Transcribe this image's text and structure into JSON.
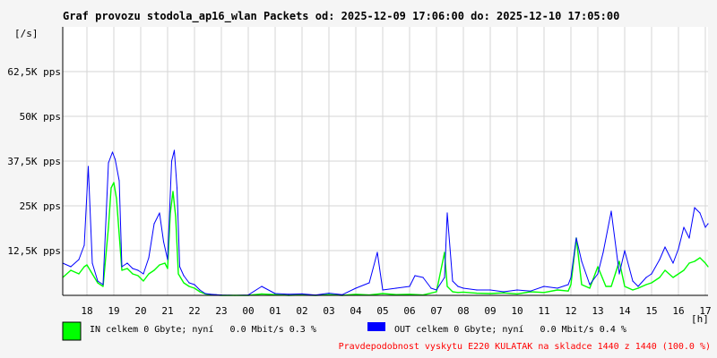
{
  "colors": {
    "background": "#f5f5f5",
    "plot_background": "#ffffff",
    "grid": "#d6d6d6",
    "in_series": "#00ff00",
    "out_series": "#0000ff",
    "note": "#ff0000"
  },
  "chart_data": {
    "type": "line",
    "title": "Graf provozu stodola_ap16_wlan Packets od: 2025-12-09 17:06:00 do: 2025-12-10 17:05:00",
    "ylabel": "[/s]",
    "xlabel": "[h]",
    "ylim": [
      0,
      75000
    ],
    "xlim": [
      17.1,
      41.1
    ],
    "grid": true,
    "y_ticks": [
      {
        "value": 12500,
        "label": "12,5K pps"
      },
      {
        "value": 25000,
        "label": "25K pps"
      },
      {
        "value": 37500,
        "label": "37,5K pps"
      },
      {
        "value": 50000,
        "label": "50K pps"
      },
      {
        "value": 62500,
        "label": "62,5K pps"
      }
    ],
    "x_ticks": [
      {
        "value": 18,
        "label": "18"
      },
      {
        "value": 19,
        "label": "19"
      },
      {
        "value": 20,
        "label": "20"
      },
      {
        "value": 21,
        "label": "21"
      },
      {
        "value": 22,
        "label": "22"
      },
      {
        "value": 23,
        "label": "23"
      },
      {
        "value": 24,
        "label": "00"
      },
      {
        "value": 25,
        "label": "01"
      },
      {
        "value": 26,
        "label": "02"
      },
      {
        "value": 27,
        "label": "03"
      },
      {
        "value": 28,
        "label": "04"
      },
      {
        "value": 29,
        "label": "05"
      },
      {
        "value": 30,
        "label": "06"
      },
      {
        "value": 31,
        "label": "07"
      },
      {
        "value": 32,
        "label": "08"
      },
      {
        "value": 33,
        "label": "09"
      },
      {
        "value": 34,
        "label": "10"
      },
      {
        "value": 35,
        "label": "11"
      },
      {
        "value": 36,
        "label": "12"
      },
      {
        "value": 37,
        "label": "13"
      },
      {
        "value": 38,
        "label": "14"
      },
      {
        "value": 39,
        "label": "15"
      },
      {
        "value": 40,
        "label": "16"
      },
      {
        "value": 41,
        "label": "17"
      }
    ],
    "series": [
      {
        "key": "in",
        "legend": "IN celkem 0 Gbyte; nyní   0.0 Mbit/s 0.3 %",
        "x": [
          17.1,
          17.4,
          17.7,
          17.9,
          18.0,
          18.2,
          18.4,
          18.6,
          18.8,
          18.9,
          19.0,
          19.1,
          19.3,
          19.5,
          19.7,
          19.9,
          20.1,
          20.3,
          20.5,
          20.7,
          20.9,
          21.0,
          21.1,
          21.2,
          21.3,
          21.4,
          21.6,
          21.8,
          22.0,
          22.2,
          22.4,
          22.6,
          22.8,
          23.0,
          23.5,
          24.0,
          24.5,
          25.0,
          25.5,
          26.0,
          26.5,
          27.0,
          27.5,
          28.0,
          28.5,
          29.0,
          29.5,
          30.0,
          30.5,
          31.0,
          31.3,
          31.4,
          31.6,
          31.8,
          32.0,
          32.5,
          33.0,
          33.5,
          34.0,
          34.5,
          35.0,
          35.5,
          35.9,
          36.0,
          36.2,
          36.4,
          36.7,
          37.0,
          37.3,
          37.5,
          37.8,
          38.0,
          38.3,
          38.5,
          38.8,
          39.0,
          39.3,
          39.5,
          39.8,
          40.0,
          40.2,
          40.4,
          40.6,
          40.8,
          41.0,
          41.1
        ],
        "values": [
          5000,
          7000,
          6000,
          8000,
          8500,
          6000,
          3500,
          2500,
          19000,
          30000,
          31500,
          27000,
          7000,
          7500,
          6000,
          5500,
          4000,
          6000,
          7000,
          8500,
          9000,
          7500,
          23000,
          29000,
          22000,
          6000,
          3500,
          2500,
          2000,
          1000,
          400,
          200,
          100,
          0,
          0,
          0,
          400,
          200,
          0,
          100,
          0,
          200,
          0,
          300,
          100,
          500,
          200,
          300,
          100,
          1000,
          12000,
          2500,
          1000,
          800,
          900,
          600,
          500,
          700,
          400,
          1000,
          800,
          1500,
          1200,
          3000,
          16000,
          3000,
          2000,
          8000,
          2500,
          2500,
          9500,
          2500,
          1500,
          2000,
          3000,
          3500,
          5000,
          7000,
          5000,
          6000,
          7000,
          9000,
          9500,
          10500,
          9000,
          8000
        ]
      },
      {
        "key": "out",
        "legend": "OUT celkem 0 Gbyte; nyní   0.0 Mbit/s 0.4 %",
        "x": [
          17.1,
          17.4,
          17.7,
          17.9,
          18.05,
          18.2,
          18.4,
          18.6,
          18.8,
          18.95,
          19.05,
          19.2,
          19.3,
          19.5,
          19.7,
          19.9,
          20.1,
          20.3,
          20.5,
          20.7,
          20.85,
          21.0,
          21.15,
          21.25,
          21.35,
          21.45,
          21.6,
          21.8,
          22.0,
          22.2,
          22.4,
          22.6,
          22.8,
          23.0,
          23.5,
          24.0,
          24.5,
          25.0,
          25.5,
          26.0,
          26.5,
          27.0,
          27.5,
          28.0,
          28.5,
          28.8,
          29.0,
          29.5,
          30.0,
          30.2,
          30.5,
          30.8,
          31.0,
          31.3,
          31.4,
          31.6,
          31.8,
          32.0,
          32.5,
          33.0,
          33.5,
          34.0,
          34.5,
          35.0,
          35.5,
          35.9,
          36.0,
          36.2,
          36.4,
          36.7,
          37.0,
          37.2,
          37.5,
          37.8,
          38.0,
          38.3,
          38.5,
          38.8,
          39.0,
          39.3,
          39.5,
          39.8,
          40.0,
          40.2,
          40.4,
          40.6,
          40.8,
          41.0,
          41.1
        ],
        "values": [
          9000,
          8000,
          10000,
          14000,
          36000,
          9000,
          4000,
          3000,
          37000,
          40000,
          38000,
          32000,
          8000,
          9000,
          7500,
          7000,
          6000,
          10500,
          20000,
          23000,
          15000,
          10000,
          37500,
          40500,
          30000,
          8000,
          5500,
          3500,
          3000,
          1500,
          500,
          300,
          200,
          100,
          0,
          100,
          2500,
          500,
          300,
          400,
          100,
          600,
          200,
          2000,
          3500,
          12000,
          1500,
          2000,
          2500,
          5500,
          5000,
          2000,
          1500,
          5000,
          23000,
          4000,
          2500,
          2000,
          1500,
          1500,
          1000,
          1500,
          1200,
          2500,
          2000,
          3000,
          5000,
          16000,
          9500,
          3000,
          6000,
          12000,
          23500,
          6000,
          12500,
          4000,
          2500,
          5000,
          6000,
          10000,
          13500,
          9000,
          13000,
          19000,
          16000,
          24500,
          23000,
          19000,
          20000
        ]
      }
    ],
    "annotation": "Pravdepodobnost vyskytu E220 KULATAK na skladce 1440 z 1440 (100.0 %)"
  }
}
